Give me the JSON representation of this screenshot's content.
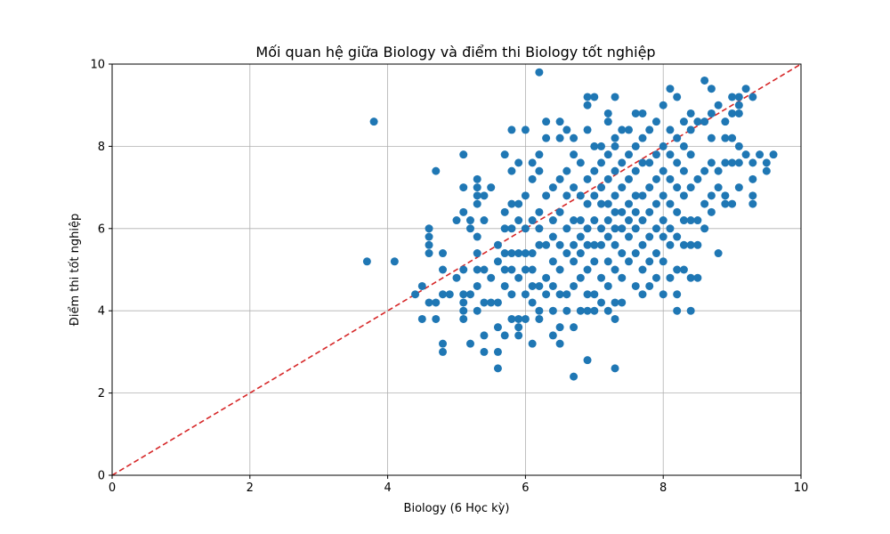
{
  "chart_data": {
    "type": "scatter",
    "title": "Mối quan hệ giữa Biology và điểm thi Biology tốt nghiệp",
    "xlabel": "Biology (6 Học kỳ)",
    "ylabel": "Điểm thi tốt nghiệp",
    "xlim": [
      0,
      10
    ],
    "ylim": [
      0,
      10
    ],
    "xticks": [
      "0",
      "2",
      "4",
      "6",
      "8",
      "10"
    ],
    "yticks": [
      "0",
      "2",
      "4",
      "6",
      "8",
      "10"
    ],
    "grid": true,
    "point_color": "#1f77b4",
    "reference_line": {
      "x": [
        0,
        10
      ],
      "y": [
        0,
        10
      ],
      "color": "#d62728",
      "style": "dashed"
    },
    "series": [
      {
        "points": [
          [
            3.7,
            5.2
          ],
          [
            3.8,
            8.6
          ],
          [
            4.1,
            5.2
          ],
          [
            4.4,
            4.4
          ],
          [
            4.5,
            3.8
          ],
          [
            4.5,
            4.6
          ],
          [
            4.6,
            4.2
          ],
          [
            4.6,
            5.4
          ],
          [
            4.6,
            5.6
          ],
          [
            4.6,
            5.8
          ],
          [
            4.6,
            6.0
          ],
          [
            4.7,
            3.8
          ],
          [
            4.7,
            4.2
          ],
          [
            4.7,
            7.4
          ],
          [
            4.8,
            3.0
          ],
          [
            4.8,
            3.2
          ],
          [
            4.8,
            4.4
          ],
          [
            4.8,
            5.0
          ],
          [
            4.8,
            5.4
          ],
          [
            4.9,
            4.4
          ],
          [
            5.0,
            4.8
          ],
          [
            5.0,
            6.2
          ],
          [
            5.1,
            3.8
          ],
          [
            5.1,
            4.0
          ],
          [
            5.1,
            4.2
          ],
          [
            5.1,
            4.4
          ],
          [
            5.1,
            5.0
          ],
          [
            5.1,
            6.4
          ],
          [
            5.1,
            7.0
          ],
          [
            5.1,
            7.8
          ],
          [
            5.2,
            3.2
          ],
          [
            5.2,
            4.4
          ],
          [
            5.2,
            6.0
          ],
          [
            5.2,
            6.2
          ],
          [
            5.3,
            4.0
          ],
          [
            5.3,
            4.6
          ],
          [
            5.3,
            5.0
          ],
          [
            5.3,
            5.4
          ],
          [
            5.3,
            5.8
          ],
          [
            5.3,
            6.6
          ],
          [
            5.3,
            6.8
          ],
          [
            5.3,
            7.0
          ],
          [
            5.3,
            7.2
          ],
          [
            5.4,
            3.0
          ],
          [
            5.4,
            3.4
          ],
          [
            5.4,
            4.2
          ],
          [
            5.4,
            5.0
          ],
          [
            5.4,
            6.2
          ],
          [
            5.4,
            6.8
          ],
          [
            5.5,
            4.2
          ],
          [
            5.5,
            4.8
          ],
          [
            5.5,
            7.0
          ],
          [
            5.6,
            2.6
          ],
          [
            5.6,
            3.0
          ],
          [
            5.6,
            3.6
          ],
          [
            5.6,
            4.2
          ],
          [
            5.6,
            5.2
          ],
          [
            5.6,
            5.6
          ],
          [
            5.7,
            3.4
          ],
          [
            5.7,
            4.6
          ],
          [
            5.7,
            5.0
          ],
          [
            5.7,
            5.4
          ],
          [
            5.7,
            6.0
          ],
          [
            5.7,
            6.4
          ],
          [
            5.7,
            7.8
          ],
          [
            5.8,
            3.8
          ],
          [
            5.8,
            4.4
          ],
          [
            5.8,
            5.0
          ],
          [
            5.8,
            5.4
          ],
          [
            5.8,
            6.0
          ],
          [
            5.8,
            6.6
          ],
          [
            5.8,
            7.4
          ],
          [
            5.8,
            8.4
          ],
          [
            5.9,
            3.4
          ],
          [
            5.9,
            3.6
          ],
          [
            5.9,
            3.8
          ],
          [
            5.9,
            4.8
          ],
          [
            5.9,
            5.4
          ],
          [
            5.9,
            6.2
          ],
          [
            5.9,
            6.6
          ],
          [
            5.9,
            7.6
          ],
          [
            6.0,
            3.8
          ],
          [
            6.0,
            4.4
          ],
          [
            6.0,
            5.0
          ],
          [
            6.0,
            5.4
          ],
          [
            6.0,
            6.0
          ],
          [
            6.0,
            6.8
          ],
          [
            6.0,
            8.4
          ],
          [
            6.1,
            3.2
          ],
          [
            6.1,
            4.2
          ],
          [
            6.1,
            4.6
          ],
          [
            6.1,
            5.0
          ],
          [
            6.1,
            5.4
          ],
          [
            6.1,
            6.2
          ],
          [
            6.1,
            7.2
          ],
          [
            6.1,
            7.6
          ],
          [
            6.2,
            3.8
          ],
          [
            6.2,
            4.0
          ],
          [
            6.2,
            4.6
          ],
          [
            6.2,
            5.6
          ],
          [
            6.2,
            6.0
          ],
          [
            6.2,
            6.4
          ],
          [
            6.2,
            7.4
          ],
          [
            6.2,
            7.8
          ],
          [
            6.2,
            9.8
          ],
          [
            6.3,
            4.4
          ],
          [
            6.3,
            4.8
          ],
          [
            6.3,
            5.6
          ],
          [
            6.3,
            6.8
          ],
          [
            6.3,
            8.2
          ],
          [
            6.3,
            8.6
          ],
          [
            6.4,
            3.4
          ],
          [
            6.4,
            4.0
          ],
          [
            6.4,
            4.6
          ],
          [
            6.4,
            5.2
          ],
          [
            6.4,
            5.8
          ],
          [
            6.4,
            6.2
          ],
          [
            6.4,
            7.0
          ],
          [
            6.5,
            3.2
          ],
          [
            6.5,
            3.6
          ],
          [
            6.5,
            4.4
          ],
          [
            6.5,
            5.0
          ],
          [
            6.5,
            5.6
          ],
          [
            6.5,
            6.4
          ],
          [
            6.5,
            7.2
          ],
          [
            6.5,
            8.2
          ],
          [
            6.5,
            8.6
          ],
          [
            6.6,
            4.0
          ],
          [
            6.6,
            4.4
          ],
          [
            6.6,
            5.4
          ],
          [
            6.6,
            6.0
          ],
          [
            6.6,
            6.8
          ],
          [
            6.6,
            7.4
          ],
          [
            6.6,
            8.4
          ],
          [
            6.7,
            2.4
          ],
          [
            6.7,
            3.6
          ],
          [
            6.7,
            4.6
          ],
          [
            6.7,
            5.2
          ],
          [
            6.7,
            5.6
          ],
          [
            6.7,
            6.2
          ],
          [
            6.7,
            7.0
          ],
          [
            6.7,
            7.8
          ],
          [
            6.7,
            8.2
          ],
          [
            6.8,
            4.0
          ],
          [
            6.8,
            4.8
          ],
          [
            6.8,
            5.4
          ],
          [
            6.8,
            5.8
          ],
          [
            6.8,
            6.2
          ],
          [
            6.8,
            6.8
          ],
          [
            6.8,
            7.6
          ],
          [
            6.9,
            2.8
          ],
          [
            6.9,
            4.0
          ],
          [
            6.9,
            4.4
          ],
          [
            6.9,
            5.0
          ],
          [
            6.9,
            5.6
          ],
          [
            6.9,
            6.0
          ],
          [
            6.9,
            6.6
          ],
          [
            6.9,
            7.2
          ],
          [
            6.9,
            8.4
          ],
          [
            6.9,
            9.0
          ],
          [
            6.9,
            9.2
          ],
          [
            7.0,
            4.0
          ],
          [
            7.0,
            4.4
          ],
          [
            7.0,
            5.2
          ],
          [
            7.0,
            5.6
          ],
          [
            7.0,
            6.2
          ],
          [
            7.0,
            6.8
          ],
          [
            7.0,
            7.4
          ],
          [
            7.0,
            8.0
          ],
          [
            7.0,
            9.2
          ],
          [
            7.1,
            4.2
          ],
          [
            7.1,
            4.8
          ],
          [
            7.1,
            5.6
          ],
          [
            7.1,
            6.0
          ],
          [
            7.1,
            6.6
          ],
          [
            7.1,
            7.0
          ],
          [
            7.1,
            7.6
          ],
          [
            7.1,
            8.0
          ],
          [
            7.2,
            4.0
          ],
          [
            7.2,
            4.6
          ],
          [
            7.2,
            5.2
          ],
          [
            7.2,
            5.8
          ],
          [
            7.2,
            6.2
          ],
          [
            7.2,
            6.6
          ],
          [
            7.2,
            7.2
          ],
          [
            7.2,
            7.8
          ],
          [
            7.2,
            8.6
          ],
          [
            7.2,
            8.8
          ],
          [
            7.3,
            2.6
          ],
          [
            7.3,
            3.8
          ],
          [
            7.3,
            4.2
          ],
          [
            7.3,
            5.0
          ],
          [
            7.3,
            5.6
          ],
          [
            7.3,
            6.0
          ],
          [
            7.3,
            6.4
          ],
          [
            7.3,
            6.8
          ],
          [
            7.3,
            7.4
          ],
          [
            7.3,
            8.0
          ],
          [
            7.3,
            8.2
          ],
          [
            7.3,
            9.2
          ],
          [
            7.4,
            4.2
          ],
          [
            7.4,
            4.8
          ],
          [
            7.4,
            5.4
          ],
          [
            7.4,
            6.0
          ],
          [
            7.4,
            6.4
          ],
          [
            7.4,
            7.0
          ],
          [
            7.4,
            7.6
          ],
          [
            7.4,
            8.4
          ],
          [
            7.5,
            5.2
          ],
          [
            7.5,
            5.8
          ],
          [
            7.5,
            6.2
          ],
          [
            7.5,
            6.6
          ],
          [
            7.5,
            7.2
          ],
          [
            7.5,
            7.8
          ],
          [
            7.5,
            8.4
          ],
          [
            7.6,
            4.6
          ],
          [
            7.6,
            5.4
          ],
          [
            7.6,
            6.0
          ],
          [
            7.6,
            6.4
          ],
          [
            7.6,
            6.8
          ],
          [
            7.6,
            7.4
          ],
          [
            7.6,
            8.0
          ],
          [
            7.6,
            8.8
          ],
          [
            7.7,
            4.4
          ],
          [
            7.7,
            5.0
          ],
          [
            7.7,
            5.6
          ],
          [
            7.7,
            6.2
          ],
          [
            7.7,
            6.8
          ],
          [
            7.7,
            7.6
          ],
          [
            7.7,
            8.2
          ],
          [
            7.7,
            8.8
          ],
          [
            7.8,
            4.6
          ],
          [
            7.8,
            5.2
          ],
          [
            7.8,
            5.8
          ],
          [
            7.8,
            6.4
          ],
          [
            7.8,
            7.0
          ],
          [
            7.8,
            7.6
          ],
          [
            7.8,
            8.4
          ],
          [
            7.9,
            4.8
          ],
          [
            7.9,
            5.4
          ],
          [
            7.9,
            6.0
          ],
          [
            7.9,
            6.6
          ],
          [
            7.9,
            7.2
          ],
          [
            7.9,
            7.8
          ],
          [
            7.9,
            8.6
          ],
          [
            8.0,
            4.4
          ],
          [
            8.0,
            5.2
          ],
          [
            8.0,
            5.8
          ],
          [
            8.0,
            6.2
          ],
          [
            8.0,
            6.8
          ],
          [
            8.0,
            7.4
          ],
          [
            8.0,
            8.0
          ],
          [
            8.0,
            9.0
          ],
          [
            8.1,
            4.8
          ],
          [
            8.1,
            5.6
          ],
          [
            8.1,
            6.0
          ],
          [
            8.1,
            6.6
          ],
          [
            8.1,
            7.2
          ],
          [
            8.1,
            7.8
          ],
          [
            8.1,
            8.4
          ],
          [
            8.1,
            9.4
          ],
          [
            8.2,
            4.0
          ],
          [
            8.2,
            4.4
          ],
          [
            8.2,
            5.0
          ],
          [
            8.2,
            5.8
          ],
          [
            8.2,
            6.4
          ],
          [
            8.2,
            7.0
          ],
          [
            8.2,
            7.6
          ],
          [
            8.2,
            8.2
          ],
          [
            8.2,
            9.2
          ],
          [
            8.3,
            5.0
          ],
          [
            8.3,
            5.6
          ],
          [
            8.3,
            6.2
          ],
          [
            8.3,
            6.8
          ],
          [
            8.3,
            7.4
          ],
          [
            8.3,
            8.0
          ],
          [
            8.3,
            8.6
          ],
          [
            8.4,
            4.0
          ],
          [
            8.4,
            4.8
          ],
          [
            8.4,
            5.6
          ],
          [
            8.4,
            6.2
          ],
          [
            8.4,
            7.0
          ],
          [
            8.4,
            7.8
          ],
          [
            8.4,
            8.4
          ],
          [
            8.4,
            8.8
          ],
          [
            8.5,
            4.8
          ],
          [
            8.5,
            5.6
          ],
          [
            8.5,
            6.2
          ],
          [
            8.5,
            7.2
          ],
          [
            8.5,
            8.6
          ],
          [
            8.6,
            6.0
          ],
          [
            8.6,
            6.6
          ],
          [
            8.6,
            7.4
          ],
          [
            8.6,
            8.6
          ],
          [
            8.6,
            9.6
          ],
          [
            8.7,
            6.4
          ],
          [
            8.7,
            6.8
          ],
          [
            8.7,
            7.6
          ],
          [
            8.7,
            8.2
          ],
          [
            8.7,
            8.8
          ],
          [
            8.7,
            9.4
          ],
          [
            8.8,
            5.4
          ],
          [
            8.8,
            7.0
          ],
          [
            8.8,
            7.4
          ],
          [
            8.8,
            9.0
          ],
          [
            8.9,
            6.6
          ],
          [
            8.9,
            6.8
          ],
          [
            8.9,
            7.6
          ],
          [
            8.9,
            8.2
          ],
          [
            8.9,
            8.6
          ],
          [
            9.0,
            6.6
          ],
          [
            9.0,
            7.6
          ],
          [
            9.0,
            8.2
          ],
          [
            9.0,
            8.8
          ],
          [
            9.0,
            9.2
          ],
          [
            9.1,
            7.0
          ],
          [
            9.1,
            7.6
          ],
          [
            9.1,
            8.0
          ],
          [
            9.1,
            8.8
          ],
          [
            9.1,
            9.0
          ],
          [
            9.1,
            9.2
          ],
          [
            9.2,
            7.8
          ],
          [
            9.2,
            9.4
          ],
          [
            9.3,
            6.6
          ],
          [
            9.3,
            6.8
          ],
          [
            9.3,
            7.2
          ],
          [
            9.3,
            7.6
          ],
          [
            9.3,
            9.2
          ],
          [
            9.4,
            7.8
          ],
          [
            9.5,
            7.4
          ],
          [
            9.5,
            7.6
          ],
          [
            9.6,
            7.8
          ]
        ]
      }
    ]
  }
}
